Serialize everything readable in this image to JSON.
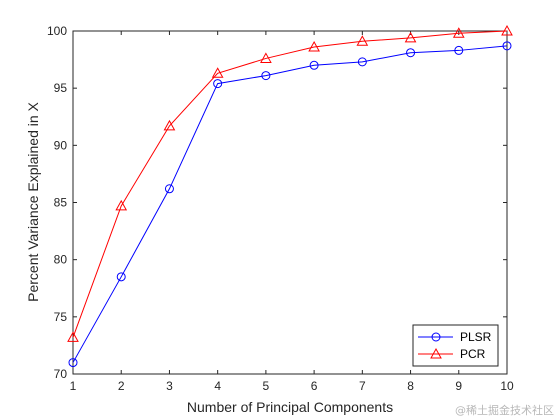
{
  "chart_data": {
    "type": "line",
    "title": "",
    "xlabel": "Number of Principal Components",
    "ylabel": "Percent Variance Explained in X",
    "x": [
      1,
      2,
      3,
      4,
      5,
      6,
      7,
      8,
      9,
      10
    ],
    "xlim": [
      1,
      10
    ],
    "ylim": [
      70,
      100
    ],
    "xticks": [
      1,
      2,
      3,
      4,
      5,
      6,
      7,
      8,
      9,
      10
    ],
    "yticks": [
      70,
      75,
      80,
      85,
      90,
      95,
      100
    ],
    "grid": false,
    "legend_position": "bottom-right",
    "series": [
      {
        "name": "PLSR",
        "values": [
          71.0,
          78.5,
          86.2,
          95.4,
          96.1,
          97.0,
          97.3,
          98.1,
          98.3,
          98.7
        ],
        "color": "#0000ff",
        "marker": "circle"
      },
      {
        "name": "PCR",
        "values": [
          73.2,
          84.7,
          91.7,
          96.3,
          97.6,
          98.6,
          99.1,
          99.4,
          99.8,
          100.0
        ],
        "color": "#ff0000",
        "marker": "triangle"
      }
    ]
  },
  "watermark": "@稀土掘金技术社区"
}
